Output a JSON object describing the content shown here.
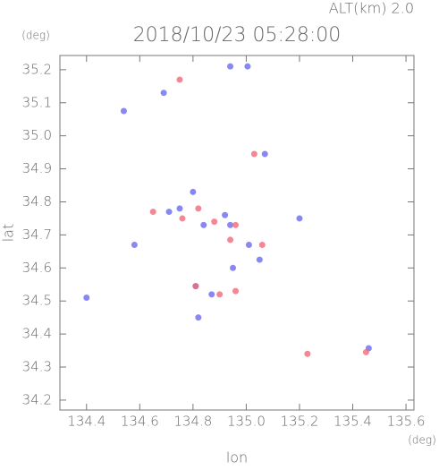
{
  "chart_data": {
    "type": "scatter",
    "title": "2018/10/23 05:28:00",
    "subtitle": "ALT(km) 2.0",
    "y_unit": "(deg)",
    "x_unit": "(deg)",
    "ylabel": "lat",
    "xlabel": "lon",
    "xlim": [
      134.3,
      135.63
    ],
    "ylim": [
      34.17,
      35.243
    ],
    "xticks": [
      134.4,
      134.6,
      134.8,
      {
        "value": 135.0,
        "label": "135.0"
      },
      135.2,
      135.4,
      135.6
    ],
    "yticks": [
      34.2,
      34.3,
      34.4,
      34.5,
      34.6,
      34.7,
      34.8,
      34.9,
      {
        "value": 35.0,
        "label": "35.0"
      },
      35.1,
      35.2
    ],
    "series": [
      {
        "color": "#6a6af2",
        "x": [
          134.4,
          134.54,
          134.69,
          134.58,
          134.71,
          134.8,
          134.84,
          134.94,
          135.01,
          135.05,
          134.95,
          134.81,
          134.82,
          134.94,
          135.005,
          135.07,
          135.2,
          135.46,
          134.87,
          134.92,
          134.75
        ],
        "y": [
          34.51,
          35.075,
          35.13,
          34.67,
          34.77,
          34.83,
          34.73,
          34.73,
          34.67,
          34.625,
          34.6,
          34.545,
          34.45,
          35.21,
          35.21,
          34.945,
          34.75,
          34.357,
          34.52,
          34.76,
          34.78
        ]
      },
      {
        "color": "#f06a7a",
        "x": [
          134.65,
          134.75,
          134.82,
          134.76,
          134.88,
          134.96,
          134.94,
          135.06,
          134.9,
          134.96,
          135.23,
          135.45,
          134.81,
          135.03
        ],
        "y": [
          34.77,
          35.17,
          34.78,
          34.75,
          34.74,
          34.73,
          34.685,
          34.67,
          34.52,
          34.53,
          34.34,
          34.345,
          34.545,
          34.945
        ]
      }
    ]
  }
}
